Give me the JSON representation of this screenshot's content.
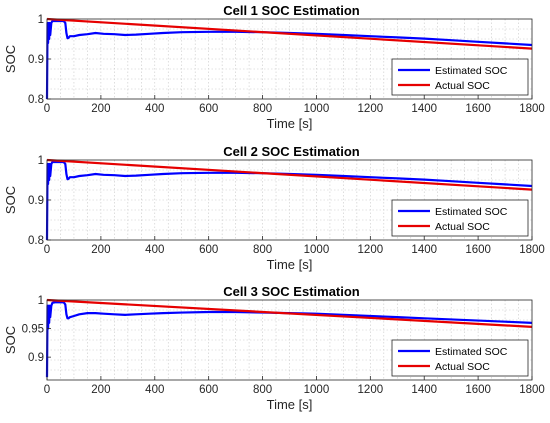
{
  "chart_data": [
    {
      "type": "line",
      "title": "Cell 1 SOC Estimation",
      "xlabel": "Time [s]",
      "ylabel": "SOC",
      "xlim": [
        0,
        1800
      ],
      "ylim": [
        0.8,
        1.0
      ],
      "xticks": [
        "0",
        "200",
        "400",
        "600",
        "800",
        "1000",
        "1200",
        "1400",
        "1600",
        "1800"
      ],
      "yticks": [
        "0.8",
        "0.9",
        "1"
      ],
      "grid": true,
      "legend_position": "lower-right",
      "series": [
        {
          "name": "Estimated SOC",
          "color": "#0000ff",
          "x": [
            0,
            2,
            4,
            6,
            8,
            10,
            12,
            16,
            20,
            30,
            45,
            55,
            62,
            68,
            72,
            76,
            80,
            85,
            100,
            120,
            150,
            180,
            210,
            250,
            290,
            330,
            380,
            430,
            500,
            600,
            700,
            800,
            900,
            1000,
            1100,
            1200,
            1300,
            1400,
            1500,
            1600,
            1700,
            1800
          ],
          "y": [
            0.8,
            0.99,
            0.94,
            0.99,
            0.95,
            0.99,
            0.96,
            0.99,
            0.995,
            0.995,
            0.995,
            0.995,
            0.995,
            0.99,
            0.965,
            0.952,
            0.953,
            0.957,
            0.957,
            0.96,
            0.962,
            0.965,
            0.963,
            0.962,
            0.96,
            0.961,
            0.963,
            0.965,
            0.967,
            0.968,
            0.968,
            0.967,
            0.965,
            0.963,
            0.96,
            0.957,
            0.954,
            0.951,
            0.947,
            0.943,
            0.939,
            0.935
          ]
        },
        {
          "name": "Actual SOC",
          "color": "#e60000",
          "x": [
            0,
            1800
          ],
          "y": [
            1.0,
            0.926
          ]
        }
      ]
    },
    {
      "type": "line",
      "title": "Cell 2 SOC Estimation",
      "xlabel": "Time [s]",
      "ylabel": "SOC",
      "xlim": [
        0,
        1800
      ],
      "ylim": [
        0.8,
        1.0
      ],
      "xticks": [
        "0",
        "200",
        "400",
        "600",
        "800",
        "1000",
        "1200",
        "1400",
        "1600",
        "1800"
      ],
      "yticks": [
        "0.8",
        "0.9",
        "1"
      ],
      "grid": true,
      "legend_position": "lower-right",
      "series": [
        {
          "name": "Estimated SOC",
          "color": "#0000ff",
          "x": [
            0,
            2,
            4,
            6,
            8,
            10,
            12,
            16,
            20,
            30,
            45,
            55,
            62,
            68,
            72,
            76,
            80,
            85,
            100,
            120,
            150,
            180,
            210,
            250,
            290,
            330,
            380,
            430,
            500,
            600,
            700,
            800,
            900,
            1000,
            1100,
            1200,
            1300,
            1400,
            1500,
            1600,
            1700,
            1800
          ],
          "y": [
            0.8,
            0.99,
            0.94,
            0.99,
            0.95,
            0.99,
            0.96,
            0.99,
            0.995,
            0.995,
            0.995,
            0.995,
            0.995,
            0.99,
            0.965,
            0.952,
            0.953,
            0.957,
            0.957,
            0.96,
            0.962,
            0.965,
            0.963,
            0.962,
            0.96,
            0.961,
            0.963,
            0.965,
            0.967,
            0.968,
            0.968,
            0.967,
            0.965,
            0.963,
            0.96,
            0.957,
            0.954,
            0.951,
            0.947,
            0.943,
            0.939,
            0.935
          ]
        },
        {
          "name": "Actual SOC",
          "color": "#e60000",
          "x": [
            0,
            1800
          ],
          "y": [
            1.0,
            0.926
          ]
        }
      ]
    },
    {
      "type": "line",
      "title": "Cell 3 SOC Estimation",
      "xlabel": "Time [s]",
      "ylabel": "SOC",
      "xlim": [
        0,
        1800
      ],
      "ylim": [
        0.86,
        1.0
      ],
      "xticks": [
        "0",
        "200",
        "400",
        "600",
        "800",
        "1000",
        "1200",
        "1400",
        "1600",
        "1800"
      ],
      "yticks": [
        "0.9",
        "0.95",
        "1"
      ],
      "grid": true,
      "legend_position": "lower-right",
      "series": [
        {
          "name": "Estimated SOC",
          "color": "#0000ff",
          "x": [
            0,
            2,
            4,
            6,
            8,
            10,
            12,
            16,
            20,
            30,
            45,
            55,
            62,
            68,
            72,
            76,
            80,
            85,
            100,
            120,
            150,
            180,
            210,
            250,
            290,
            330,
            380,
            430,
            500,
            600,
            700,
            800,
            900,
            1000,
            1100,
            1200,
            1300,
            1400,
            1500,
            1600,
            1700,
            1800
          ],
          "y": [
            0.865,
            0.99,
            0.95,
            0.99,
            0.96,
            0.99,
            0.97,
            0.99,
            0.995,
            0.996,
            0.996,
            0.996,
            0.996,
            0.992,
            0.975,
            0.968,
            0.968,
            0.97,
            0.972,
            0.975,
            0.977,
            0.977,
            0.976,
            0.975,
            0.974,
            0.975,
            0.976,
            0.977,
            0.978,
            0.979,
            0.979,
            0.978,
            0.977,
            0.976,
            0.974,
            0.972,
            0.97,
            0.968,
            0.966,
            0.964,
            0.962,
            0.96
          ]
        },
        {
          "name": "Actual SOC",
          "color": "#e60000",
          "x": [
            0,
            1800
          ],
          "y": [
            1.0,
            0.953
          ]
        }
      ]
    }
  ]
}
